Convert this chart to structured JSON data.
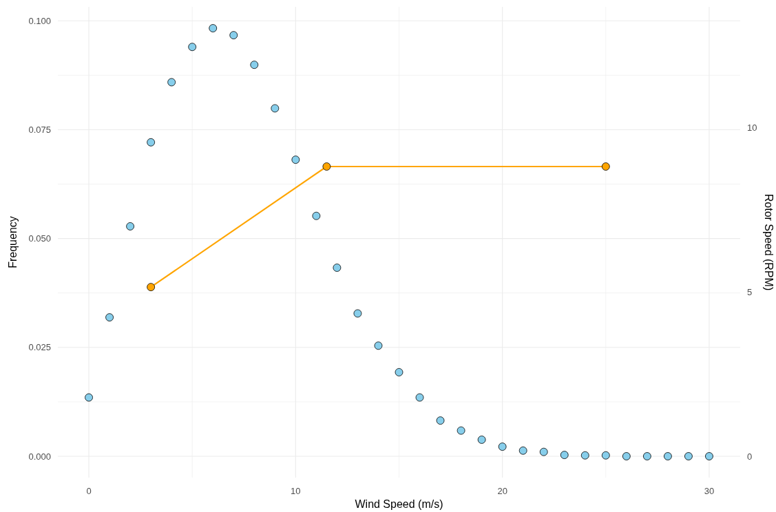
{
  "chart_data": {
    "type": "scatter",
    "xlabel": "Wind Speed (m/s)",
    "ylabel": "Frequency",
    "y2label": "Rotor Speed (RPM)",
    "xlim": [
      -1.5,
      31.5
    ],
    "xticks": [
      0,
      10,
      20,
      30
    ],
    "ylim": [
      -0.0049,
      0.1032
    ],
    "yticks": [
      {
        "value": 0,
        "label": "0.000"
      },
      {
        "value": 0.025,
        "label": "0.025"
      },
      {
        "value": 0.05,
        "label": "0.050"
      },
      {
        "value": 0.075,
        "label": "0.075"
      },
      {
        "value": 0.1,
        "label": "0.100"
      }
    ],
    "y2lim": [
      -0.65,
      13.68
    ],
    "y2ticks": [
      0,
      5,
      10
    ],
    "grid": true,
    "marker": "circle",
    "series": [
      {
        "color": "#87ceeb",
        "x": [
          0,
          1,
          2,
          3,
          4,
          5,
          6,
          7,
          8,
          9,
          10,
          11,
          12,
          13,
          14,
          15,
          16,
          17,
          18,
          19,
          20,
          21,
          22,
          23,
          24,
          25,
          26,
          27,
          28,
          29,
          30
        ],
        "values": [
          0.0135,
          0.0319,
          0.0528,
          0.0721,
          0.0859,
          0.094,
          0.0983,
          0.0967,
          0.0899,
          0.0799,
          0.0681,
          0.0552,
          0.0433,
          0.0328,
          0.0254,
          0.0193,
          0.0135,
          0.0082,
          0.0059,
          0.0038,
          0.0022,
          0.0013,
          0.001,
          0.0003,
          0.0002,
          0.0002,
          0,
          0,
          0,
          0,
          0
        ]
      },
      {
        "type": "line",
        "axis": "y2",
        "color": "#ffa500",
        "x": [
          3,
          11.5,
          25
        ],
        "values": [
          5.15,
          8.82,
          8.82
        ]
      }
    ]
  }
}
